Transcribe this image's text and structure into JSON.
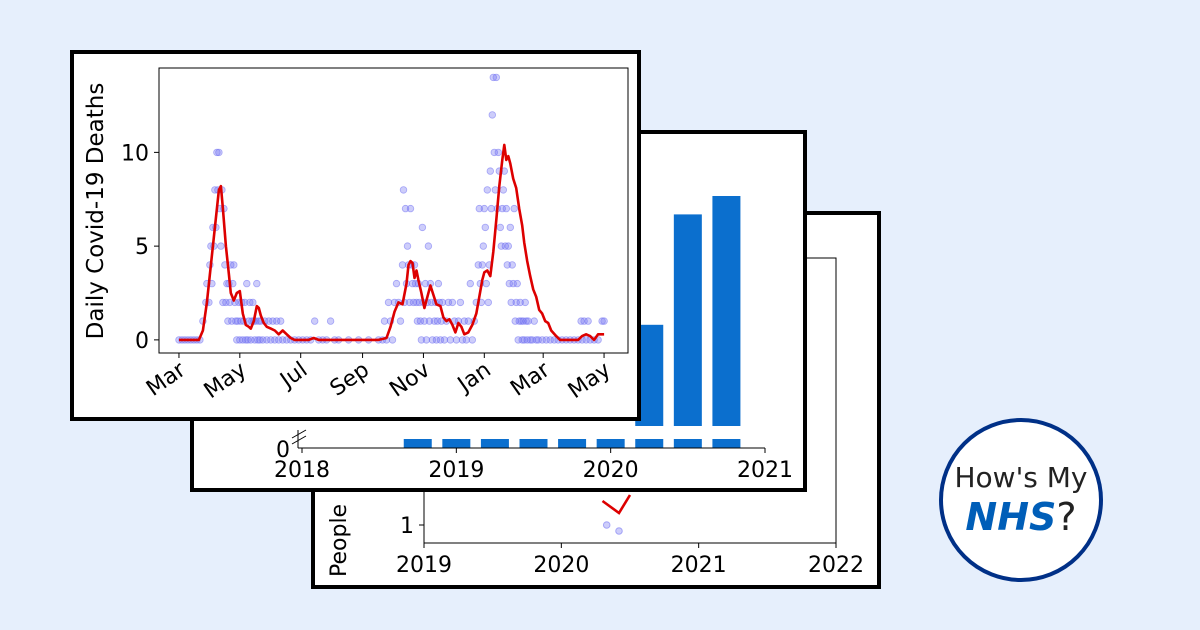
{
  "logo": {
    "line1": "How's My",
    "nhs": "NHS",
    "question": "?"
  },
  "colors": {
    "background": "#e6effc",
    "bar": "#0b6fce",
    "points": "#6f6ff2",
    "rolling_line": "#dd0000",
    "logo_border": "#003087",
    "nhs_blue": "#005eb8"
  },
  "chart_data": [
    {
      "id": "covid-deaths",
      "type": "scatter",
      "ylabel": "Daily Covid-19 Deaths",
      "xlabel": "",
      "title": "",
      "x_ticks": [
        "Mar",
        "May",
        "Jul",
        "Sep",
        "Nov",
        "Jan",
        "Mar",
        "May"
      ],
      "x_tick_positions": [
        0,
        61,
        122,
        184,
        245,
        306,
        365,
        426
      ],
      "y_ticks": [
        0,
        5,
        10
      ],
      "xlim": [
        -20,
        450
      ],
      "ylim": [
        -0.7,
        14.5
      ],
      "series": [
        {
          "kind": "points"
        },
        {
          "kind": "rolling-average-line"
        }
      ],
      "rolling_average": [
        [
          0,
          0
        ],
        [
          20,
          0
        ],
        [
          24,
          0.5
        ],
        [
          28,
          2
        ],
        [
          32,
          4
        ],
        [
          36,
          6
        ],
        [
          40,
          8
        ],
        [
          42,
          8.2
        ],
        [
          44,
          7
        ],
        [
          47,
          5
        ],
        [
          50,
          3.5
        ],
        [
          52,
          2.5
        ],
        [
          55,
          2.1
        ],
        [
          58,
          2.5
        ],
        [
          61,
          2.6
        ],
        [
          64,
          1.4
        ],
        [
          67,
          0.8
        ],
        [
          70,
          0.7
        ],
        [
          72,
          0.6
        ],
        [
          75,
          1
        ],
        [
          78,
          1.8
        ],
        [
          80,
          1.7
        ],
        [
          82,
          1.3
        ],
        [
          85,
          0.9
        ],
        [
          88,
          0.7
        ],
        [
          92,
          0.6
        ],
        [
          96,
          0.5
        ],
        [
          100,
          0.3
        ],
        [
          104,
          0.5
        ],
        [
          108,
          0.3
        ],
        [
          112,
          0.1
        ],
        [
          116,
          0
        ],
        [
          130,
          0
        ],
        [
          135,
          0.1
        ],
        [
          140,
          0
        ],
        [
          150,
          0
        ],
        [
          160,
          0
        ],
        [
          180,
          0
        ],
        [
          200,
          0
        ],
        [
          208,
          0.1
        ],
        [
          212,
          0.7
        ],
        [
          216,
          1.5
        ],
        [
          220,
          2
        ],
        [
          224,
          1.9
        ],
        [
          228,
          3
        ],
        [
          230,
          4
        ],
        [
          232,
          4.2
        ],
        [
          234,
          4.1
        ],
        [
          236,
          3.3
        ],
        [
          238,
          3.7
        ],
        [
          240,
          3.2
        ],
        [
          243,
          2.5
        ],
        [
          246,
          1.7
        ],
        [
          249,
          2.3
        ],
        [
          252,
          2.9
        ],
        [
          255,
          2.4
        ],
        [
          258,
          1.9
        ],
        [
          262,
          1.8
        ],
        [
          265,
          1.2
        ],
        [
          268,
          1
        ],
        [
          271,
          1.1
        ],
        [
          274,
          0.8
        ],
        [
          277,
          0.4
        ],
        [
          280,
          0.9
        ],
        [
          283,
          0.7
        ],
        [
          286,
          0.3
        ],
        [
          290,
          0.4
        ],
        [
          294,
          0.8
        ],
        [
          298,
          1.4
        ],
        [
          301,
          2.3
        ],
        [
          304,
          3.2
        ],
        [
          306,
          3.6
        ],
        [
          309,
          3.7
        ],
        [
          312,
          3.4
        ],
        [
          315,
          4.7
        ],
        [
          318,
          6.4
        ],
        [
          321,
          8.2
        ],
        [
          324,
          9.6
        ],
        [
          326,
          10.4
        ],
        [
          328,
          9.6
        ],
        [
          330,
          9.8
        ],
        [
          332,
          9.4
        ],
        [
          335,
          8.6
        ],
        [
          338,
          8.1
        ],
        [
          341,
          7
        ],
        [
          344,
          6.1
        ],
        [
          346,
          5.2
        ],
        [
          349,
          4.2
        ],
        [
          352,
          3.4
        ],
        [
          355,
          2.7
        ],
        [
          358,
          2.3
        ],
        [
          361,
          1.6
        ],
        [
          364,
          1.4
        ],
        [
          367,
          1
        ],
        [
          370,
          0.9
        ],
        [
          373,
          0.5
        ],
        [
          378,
          0.2
        ],
        [
          382,
          0
        ],
        [
          400,
          0
        ],
        [
          404,
          0.2
        ],
        [
          408,
          0.3
        ],
        [
          412,
          0.2
        ],
        [
          416,
          0
        ],
        [
          420,
          0.3
        ],
        [
          426,
          0.3
        ]
      ],
      "points": [
        [
          0,
          0
        ],
        [
          3,
          0
        ],
        [
          6,
          0
        ],
        [
          9,
          0
        ],
        [
          12,
          0
        ],
        [
          15,
          0
        ],
        [
          18,
          0
        ],
        [
          21,
          0
        ],
        [
          24,
          1
        ],
        [
          27,
          2
        ],
        [
          28,
          3
        ],
        [
          30,
          2
        ],
        [
          31,
          4
        ],
        [
          32,
          5
        ],
        [
          33,
          3
        ],
        [
          34,
          6
        ],
        [
          35,
          5
        ],
        [
          36,
          8
        ],
        [
          37,
          6
        ],
        [
          38,
          10
        ],
        [
          39,
          8
        ],
        [
          40,
          10
        ],
        [
          41,
          7
        ],
        [
          42,
          5
        ],
        [
          43,
          8
        ],
        [
          44,
          2
        ],
        [
          45,
          7
        ],
        [
          46,
          4
        ],
        [
          47,
          2
        ],
        [
          48,
          3
        ],
        [
          49,
          1
        ],
        [
          50,
          3
        ],
        [
          51,
          2
        ],
        [
          52,
          4
        ],
        [
          53,
          1
        ],
        [
          54,
          3
        ],
        [
          55,
          4
        ],
        [
          56,
          2
        ],
        [
          57,
          1
        ],
        [
          58,
          0
        ],
        [
          59,
          1
        ],
        [
          60,
          2
        ],
        [
          61,
          0
        ],
        [
          62,
          1
        ],
        [
          63,
          2
        ],
        [
          64,
          0
        ],
        [
          65,
          1
        ],
        [
          66,
          2
        ],
        [
          67,
          0
        ],
        [
          68,
          3
        ],
        [
          69,
          0
        ],
        [
          70,
          1
        ],
        [
          71,
          2
        ],
        [
          72,
          0
        ],
        [
          73,
          1
        ],
        [
          74,
          2
        ],
        [
          75,
          1
        ],
        [
          76,
          0
        ],
        [
          77,
          1
        ],
        [
          78,
          3
        ],
        [
          79,
          0
        ],
        [
          80,
          1
        ],
        [
          81,
          0
        ],
        [
          82,
          1
        ],
        [
          84,
          0
        ],
        [
          86,
          1
        ],
        [
          88,
          0
        ],
        [
          90,
          1
        ],
        [
          92,
          0
        ],
        [
          94,
          1
        ],
        [
          96,
          0
        ],
        [
          98,
          1
        ],
        [
          100,
          0
        ],
        [
          102,
          1
        ],
        [
          104,
          0
        ],
        [
          108,
          0
        ],
        [
          112,
          0
        ],
        [
          116,
          0
        ],
        [
          120,
          0
        ],
        [
          124,
          0
        ],
        [
          128,
          0
        ],
        [
          132,
          0
        ],
        [
          136,
          1
        ],
        [
          140,
          0
        ],
        [
          144,
          0
        ],
        [
          148,
          0
        ],
        [
          152,
          1
        ],
        [
          156,
          0
        ],
        [
          160,
          0
        ],
        [
          170,
          0
        ],
        [
          180,
          0
        ],
        [
          190,
          0
        ],
        [
          200,
          0
        ],
        [
          204,
          0
        ],
        [
          206,
          1
        ],
        [
          208,
          0
        ],
        [
          210,
          2
        ],
        [
          212,
          1
        ],
        [
          214,
          0
        ],
        [
          216,
          2
        ],
        [
          218,
          3
        ],
        [
          220,
          2
        ],
        [
          222,
          1
        ],
        [
          224,
          4
        ],
        [
          225,
          8
        ],
        [
          226,
          2
        ],
        [
          227,
          7
        ],
        [
          228,
          3
        ],
        [
          229,
          5
        ],
        [
          230,
          4
        ],
        [
          231,
          2
        ],
        [
          232,
          7
        ],
        [
          233,
          4
        ],
        [
          234,
          3
        ],
        [
          235,
          2
        ],
        [
          236,
          4
        ],
        [
          237,
          3
        ],
        [
          238,
          2
        ],
        [
          239,
          1
        ],
        [
          240,
          3
        ],
        [
          241,
          2
        ],
        [
          242,
          1
        ],
        [
          243,
          0
        ],
        [
          244,
          6
        ],
        [
          245,
          2
        ],
        [
          246,
          1
        ],
        [
          247,
          3
        ],
        [
          248,
          0
        ],
        [
          249,
          2
        ],
        [
          250,
          5
        ],
        [
          251,
          1
        ],
        [
          252,
          3
        ],
        [
          253,
          2
        ],
        [
          254,
          0
        ],
        [
          256,
          1
        ],
        [
          257,
          2
        ],
        [
          258,
          0
        ],
        [
          259,
          1
        ],
        [
          260,
          3
        ],
        [
          261,
          2
        ],
        [
          262,
          0
        ],
        [
          263,
          1
        ],
        [
          264,
          2
        ],
        [
          266,
          0
        ],
        [
          268,
          1
        ],
        [
          270,
          2
        ],
        [
          272,
          0
        ],
        [
          274,
          2
        ],
        [
          276,
          1
        ],
        [
          278,
          0
        ],
        [
          280,
          1
        ],
        [
          282,
          2
        ],
        [
          284,
          0
        ],
        [
          286,
          1
        ],
        [
          288,
          0
        ],
        [
          290,
          1
        ],
        [
          292,
          3
        ],
        [
          294,
          0
        ],
        [
          296,
          1
        ],
        [
          298,
          2
        ],
        [
          300,
          4
        ],
        [
          301,
          7
        ],
        [
          302,
          3
        ],
        [
          303,
          2
        ],
        [
          304,
          4
        ],
        [
          305,
          5
        ],
        [
          306,
          7
        ],
        [
          307,
          6
        ],
        [
          308,
          3
        ],
        [
          309,
          8
        ],
        [
          310,
          2
        ],
        [
          311,
          4
        ],
        [
          312,
          9
        ],
        [
          313,
          7
        ],
        [
          314,
          12
        ],
        [
          315,
          14
        ],
        [
          316,
          10
        ],
        [
          317,
          8
        ],
        [
          318,
          14
        ],
        [
          319,
          7
        ],
        [
          320,
          10
        ],
        [
          321,
          9
        ],
        [
          322,
          6
        ],
        [
          323,
          5
        ],
        [
          324,
          7
        ],
        [
          325,
          8
        ],
        [
          326,
          9
        ],
        [
          327,
          5
        ],
        [
          328,
          7
        ],
        [
          329,
          4
        ],
        [
          330,
          5
        ],
        [
          331,
          3
        ],
        [
          332,
          6
        ],
        [
          333,
          2
        ],
        [
          334,
          4
        ],
        [
          335,
          3
        ],
        [
          336,
          7
        ],
        [
          337,
          1
        ],
        [
          338,
          2
        ],
        [
          339,
          3
        ],
        [
          340,
          0
        ],
        [
          341,
          1
        ],
        [
          342,
          2
        ],
        [
          343,
          1
        ],
        [
          344,
          0
        ],
        [
          345,
          1
        ],
        [
          346,
          0
        ],
        [
          347,
          2
        ],
        [
          348,
          1
        ],
        [
          349,
          0
        ],
        [
          350,
          1
        ],
        [
          352,
          0
        ],
        [
          354,
          0
        ],
        [
          356,
          1
        ],
        [
          358,
          0
        ],
        [
          360,
          0
        ],
        [
          364,
          0
        ],
        [
          368,
          0
        ],
        [
          372,
          0
        ],
        [
          376,
          0
        ],
        [
          380,
          0
        ],
        [
          384,
          0
        ],
        [
          388,
          0
        ],
        [
          392,
          0
        ],
        [
          396,
          0
        ],
        [
          400,
          0
        ],
        [
          403,
          1
        ],
        [
          404,
          0
        ],
        [
          406,
          1
        ],
        [
          408,
          0
        ],
        [
          410,
          1
        ],
        [
          412,
          0
        ],
        [
          416,
          0
        ],
        [
          420,
          0
        ],
        [
          424,
          1
        ],
        [
          426,
          1
        ]
      ]
    },
    {
      "id": "bar-chart",
      "type": "bar",
      "title": "",
      "xlabel": "",
      "ylabel": "",
      "x_ticks": [
        "2018",
        "2019",
        "2020",
        "2021"
      ],
      "y_ticks": [
        0
      ],
      "xlim": [
        2018,
        2021
      ],
      "broken_axis": true,
      "bar_x": [
        2018.75,
        2019.0,
        2019.25,
        2019.5,
        2019.75,
        2020.0,
        2020.25,
        2020.5,
        2020.75
      ],
      "bar_upper_tops": [
        0,
        0,
        0,
        0,
        0,
        0,
        0.44,
        0.92,
        1.0
      ]
    },
    {
      "id": "people-chart",
      "type": "scatter",
      "title": "",
      "xlabel": "",
      "ylabel": "People",
      "x_ticks": [
        "2019",
        "2020",
        "2021",
        "2022"
      ],
      "y_ticks": [
        1
      ],
      "xlim": [
        2019,
        2022
      ],
      "points": [
        [
          2020.33,
          1.0
        ],
        [
          2020.42,
          0.95
        ]
      ],
      "line": [
        [
          2020.3,
          1.2
        ],
        [
          2020.42,
          1.1
        ],
        [
          2020.5,
          1.25
        ]
      ]
    }
  ]
}
